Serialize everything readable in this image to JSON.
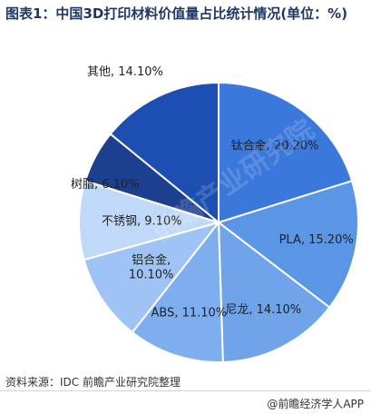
{
  "header": {
    "title": "图表1：中国3D打印材料价值量占比统计情况(单位：%)"
  },
  "chart_data": {
    "type": "pie",
    "title": "图表1：中国3D打印材料价值量占比统计情况(单位：%)",
    "slices": [
      {
        "label": "钛合金",
        "value": 20.2,
        "display": "钛合金, 20.20%",
        "color": "#3b78db"
      },
      {
        "label": "PLA",
        "value": 15.2,
        "display": "PLA, 15.20%",
        "color": "#5b96e6"
      },
      {
        "label": "尼龙",
        "value": 14.1,
        "display": "尼龙, 14.10%",
        "color": "#6fa3ea"
      },
      {
        "label": "ABS",
        "value": 11.1,
        "display": "ABS, 11.10%",
        "color": "#7eaeee"
      },
      {
        "label": "铝合金",
        "value": 10.1,
        "display": "铝合金,\n10.10%",
        "color": "#9ec3f4"
      },
      {
        "label": "不锈钢",
        "value": 9.1,
        "display": "不锈钢, 9.10%",
        "color": "#c0d9f8"
      },
      {
        "label": "树脂",
        "value": 6.1,
        "display": "树脂, 6.10%",
        "color": "#1d3f8f"
      },
      {
        "label": "其他",
        "value": 14.1,
        "display": "其他, 14.10%",
        "color": "#1d4fb3"
      }
    ]
  },
  "footer": {
    "source": "资料来源：IDC 前瞻产业研究院整理",
    "brand": "@前瞻经济学人APP"
  },
  "watermark": {
    "text": "前瞻产业研究院"
  }
}
